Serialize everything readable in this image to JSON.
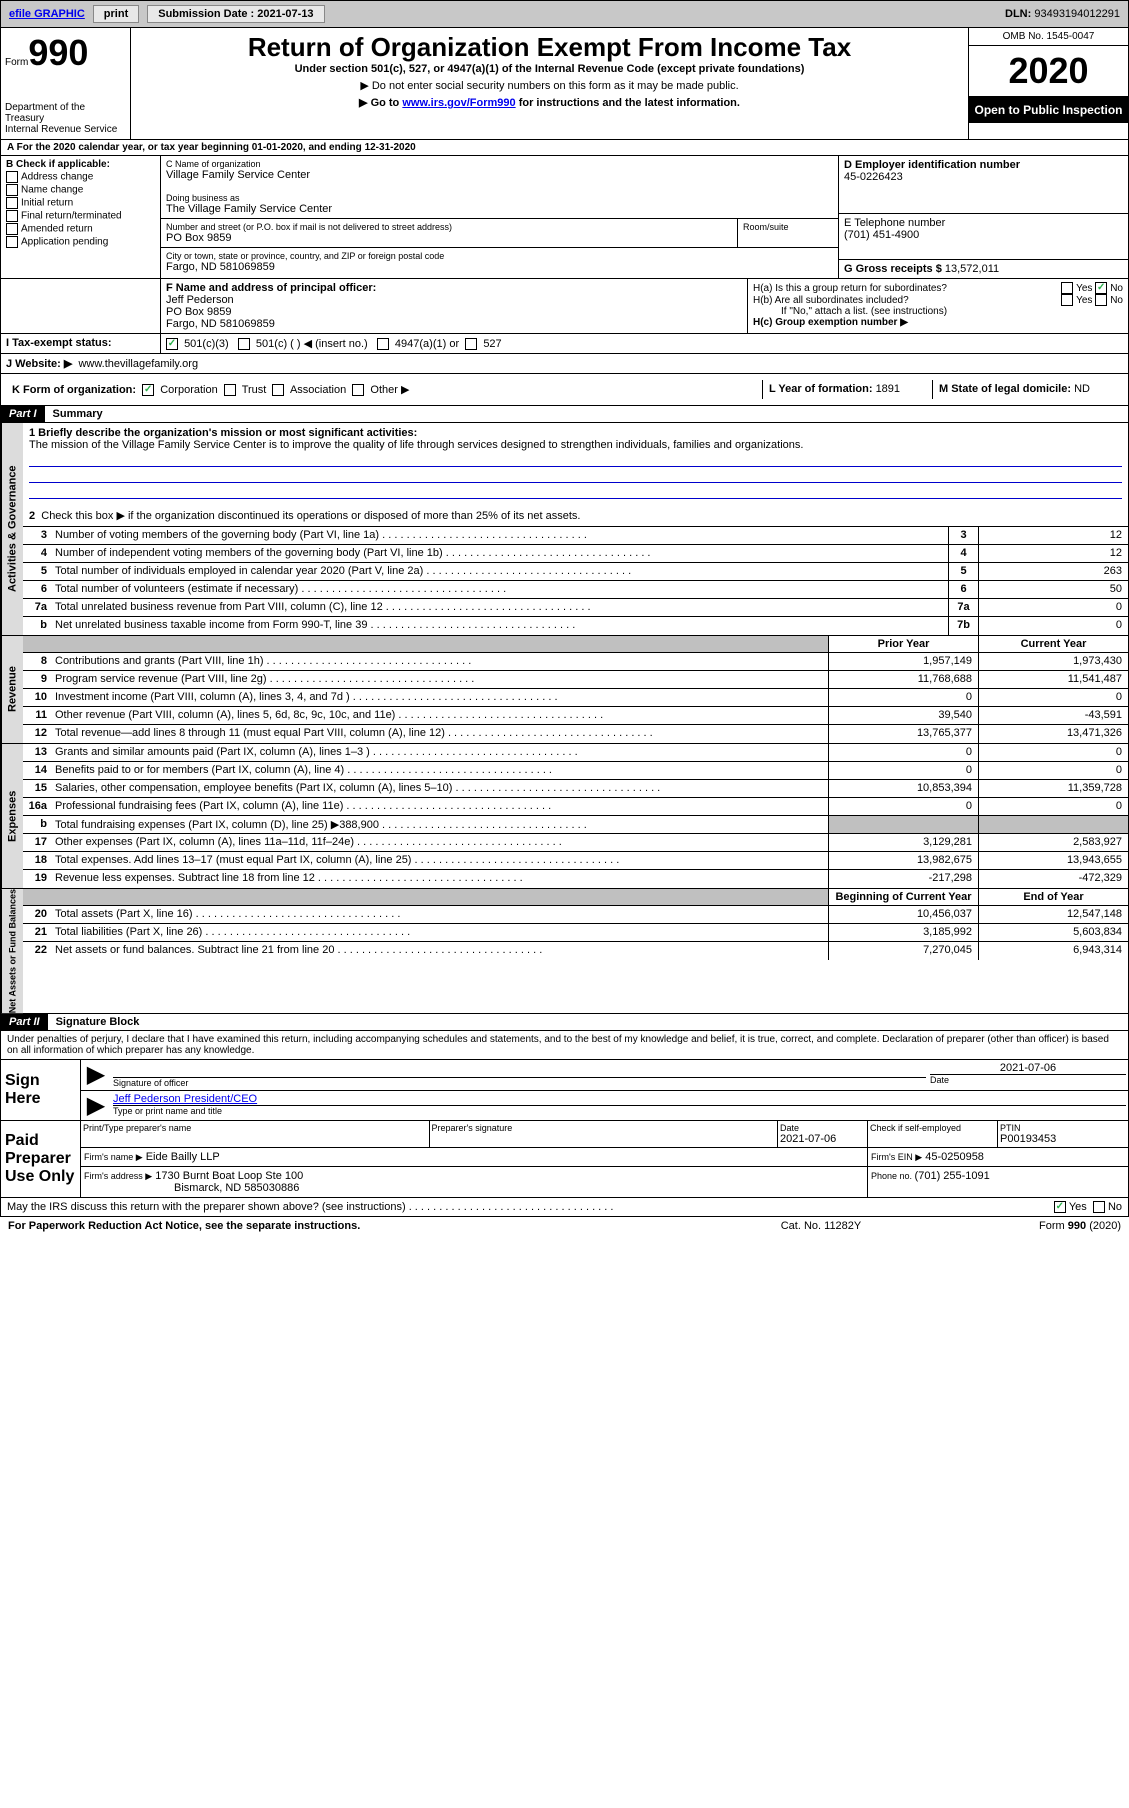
{
  "topbar": {
    "efile": "efile GRAPHIC",
    "print": "print",
    "submission_label": "Submission Date : ",
    "submission_date": "2021-07-13",
    "dln_label": "DLN: ",
    "dln": "93493194012291"
  },
  "header": {
    "form_word": "Form",
    "form_num": "990",
    "dept": "Department of the Treasury\nInternal Revenue Service",
    "title": "Return of Organization Exempt From Income Tax",
    "sub1": "Under section 501(c), 527, or 4947(a)(1) of the Internal Revenue Code (except private foundations)",
    "sub2": "▶ Do not enter social security numbers on this form as it may be made public.",
    "sub3_pre": "▶ Go to ",
    "sub3_link": "www.irs.gov/Form990",
    "sub3_post": " for instructions and the latest information.",
    "omb": "OMB No. 1545-0047",
    "year": "2020",
    "openpub": "Open to Public Inspection"
  },
  "a_line": {
    "label_pre": "A For the 2020 calendar year, or tax year beginning ",
    "begin": "01-01-2020",
    "mid": ", and ending ",
    "end": "12-31-2020"
  },
  "sectionB": {
    "title": "B Check if applicable:",
    "items": [
      "Address change",
      "Name change",
      "Initial return",
      "Final return/terminated",
      "Amended return",
      "Application pending"
    ]
  },
  "sectionC": {
    "name_label": "C Name of organization",
    "name": "Village Family Service Center",
    "dba_label": "Doing business as",
    "dba": "The Village Family Service Center",
    "street_label": "Number and street (or P.O. box if mail is not delivered to street address)",
    "room_label": "Room/suite",
    "street": "PO Box 9859",
    "city_label": "City or town, state or province, country, and ZIP or foreign postal code",
    "city": "Fargo, ND 581069859"
  },
  "sectionD": {
    "label": "D Employer identification number",
    "value": "45-0226423"
  },
  "sectionE": {
    "label": "E Telephone number",
    "value": "(701) 451-4900"
  },
  "sectionG": {
    "label": "G Gross receipts $ ",
    "value": "13,572,011"
  },
  "sectionF": {
    "label": "F Name and address of principal officer:",
    "name": "Jeff Pederson",
    "street": "PO Box 9859",
    "city": "Fargo, ND 581069859"
  },
  "sectionH": {
    "ha_label": "H(a)  Is this a group return for subordinates?",
    "hb_label": "H(b)  Are all subordinates included?",
    "hb_note": "If \"No,\" attach a list. (see instructions)",
    "hc_label": "H(c)  Group exemption number ▶"
  },
  "sectionI": {
    "label": "I  Tax-exempt status:",
    "opt1": "501(c)(3)",
    "opt2": "501(c) (   ) ◀ (insert no.)",
    "opt3": "4947(a)(1) or",
    "opt4": "527"
  },
  "sectionJ": {
    "label": "J  Website: ▶",
    "value": "www.thevillagefamily.org"
  },
  "sectionK": {
    "label": "K Form of organization:",
    "opts": [
      "Corporation",
      "Trust",
      "Association",
      "Other ▶"
    ]
  },
  "sectionL": {
    "label": "L Year of formation: ",
    "value": "1891"
  },
  "sectionM": {
    "label": "M State of legal domicile: ",
    "value": "ND"
  },
  "part1": {
    "title": "Part I",
    "name": "Summary",
    "q1_label": "1  Briefly describe the organization's mission or most significant activities:",
    "q1_text": "The mission of the Village Family Service Center is to improve the quality of life through services designed to strengthen individuals, families and organizations.",
    "q2": "Check this box ▶        if the organization discontinued its operations or disposed of more than 25% of its net assets.",
    "rows_ag": [
      {
        "n": "3",
        "label": "Number of voting members of the governing body (Part VI, line 1a)",
        "box": "3",
        "val": "12"
      },
      {
        "n": "4",
        "label": "Number of independent voting members of the governing body (Part VI, line 1b)",
        "box": "4",
        "val": "12"
      },
      {
        "n": "5",
        "label": "Total number of individuals employed in calendar year 2020 (Part V, line 2a)",
        "box": "5",
        "val": "263"
      },
      {
        "n": "6",
        "label": "Total number of volunteers (estimate if necessary)",
        "box": "6",
        "val": "50"
      },
      {
        "n": "7a",
        "label": "Total unrelated business revenue from Part VIII, column (C), line 12",
        "box": "7a",
        "val": "0"
      },
      {
        "n": "b",
        "label": "Net unrelated business taxable income from Form 990-T, line 39",
        "box": "7b",
        "val": "0"
      }
    ],
    "col_prior": "Prior Year",
    "col_current": "Current Year",
    "rows_rev": [
      {
        "n": "8",
        "label": "Contributions and grants (Part VIII, line 1h)",
        "pv": "1,957,149",
        "cv": "1,973,430"
      },
      {
        "n": "9",
        "label": "Program service revenue (Part VIII, line 2g)",
        "pv": "11,768,688",
        "cv": "11,541,487"
      },
      {
        "n": "10",
        "label": "Investment income (Part VIII, column (A), lines 3, 4, and 7d )",
        "pv": "0",
        "cv": "0"
      },
      {
        "n": "11",
        "label": "Other revenue (Part VIII, column (A), lines 5, 6d, 8c, 9c, 10c, and 11e)",
        "pv": "39,540",
        "cv": "-43,591"
      },
      {
        "n": "12",
        "label": "Total revenue—add lines 8 through 11 (must equal Part VIII, column (A), line 12)",
        "pv": "13,765,377",
        "cv": "13,471,326"
      }
    ],
    "rows_exp": [
      {
        "n": "13",
        "label": "Grants and similar amounts paid (Part IX, column (A), lines 1–3 )",
        "pv": "0",
        "cv": "0"
      },
      {
        "n": "14",
        "label": "Benefits paid to or for members (Part IX, column (A), line 4)",
        "pv": "0",
        "cv": "0"
      },
      {
        "n": "15",
        "label": "Salaries, other compensation, employee benefits (Part IX, column (A), lines 5–10)",
        "pv": "10,853,394",
        "cv": "11,359,728"
      },
      {
        "n": "16a",
        "label": "Professional fundraising fees (Part IX, column (A), line 11e)",
        "pv": "0",
        "cv": "0"
      },
      {
        "n": "b",
        "label": "Total fundraising expenses (Part IX, column (D), line 25) ▶388,900",
        "pv": "",
        "cv": "",
        "gray": true
      },
      {
        "n": "17",
        "label": "Other expenses (Part IX, column (A), lines 11a–11d, 11f–24e)",
        "pv": "3,129,281",
        "cv": "2,583,927"
      },
      {
        "n": "18",
        "label": "Total expenses. Add lines 13–17 (must equal Part IX, column (A), line 25)",
        "pv": "13,982,675",
        "cv": "13,943,655"
      },
      {
        "n": "19",
        "label": "Revenue less expenses. Subtract line 18 from line 12",
        "pv": "-217,298",
        "cv": "-472,329"
      }
    ],
    "col_begin": "Beginning of Current Year",
    "col_end": "End of Year",
    "rows_net": [
      {
        "n": "20",
        "label": "Total assets (Part X, line 16)",
        "pv": "10,456,037",
        "cv": "12,547,148"
      },
      {
        "n": "21",
        "label": "Total liabilities (Part X, line 26)",
        "pv": "3,185,992",
        "cv": "5,603,834"
      },
      {
        "n": "22",
        "label": "Net assets or fund balances. Subtract line 21 from line 20",
        "pv": "7,270,045",
        "cv": "6,943,314"
      }
    ],
    "sidelabels": {
      "ag": "Activities & Governance",
      "rev": "Revenue",
      "exp": "Expenses",
      "net": "Net Assets or Fund Balances"
    }
  },
  "part2": {
    "title": "Part II",
    "name": "Signature Block",
    "declaration": "Under penalties of perjury, I declare that I have examined this return, including accompanying schedules and statements, and to the best of my knowledge and belief, it is true, correct, and complete. Declaration of preparer (other than officer) is based on all information of which preparer has any knowledge.",
    "sign_here": "Sign Here",
    "sig_officer_label": "Signature of officer",
    "sig_date_label": "Date",
    "sig_date": "2021-07-06",
    "officer_name": "Jeff Pederson  President/CEO",
    "officer_name_label": "Type or print name and title",
    "paid_prep": "Paid Preparer Use Only",
    "preparer_name_label": "Print/Type preparer's name",
    "preparer_sig_label": "Preparer's signature",
    "date_label": "Date",
    "prep_date": "2021-07-06",
    "self_employed": "Check         if self-employed",
    "ptin_label": "PTIN",
    "ptin": "P00193453",
    "firm_name_label": "Firm's name    ▶",
    "firm_name": "Eide Bailly LLP",
    "firm_ein_label": "Firm's EIN ▶",
    "firm_ein": "45-0250958",
    "firm_addr_label": "Firm's address ▶",
    "firm_addr1": "1730 Burnt Boat Loop Ste 100",
    "firm_addr2": "Bismarck, ND  585030886",
    "firm_phone_label": "Phone no. ",
    "firm_phone": "(701) 255-1091",
    "discuss": "May the IRS discuss this return with the preparer shown above? (see instructions)"
  },
  "footer": {
    "paperwork": "For Paperwork Reduction Act Notice, see the separate instructions.",
    "catno": "Cat. No. 11282Y",
    "formrev": "Form 990 (2020)"
  },
  "yes": "Yes",
  "no": "No"
}
